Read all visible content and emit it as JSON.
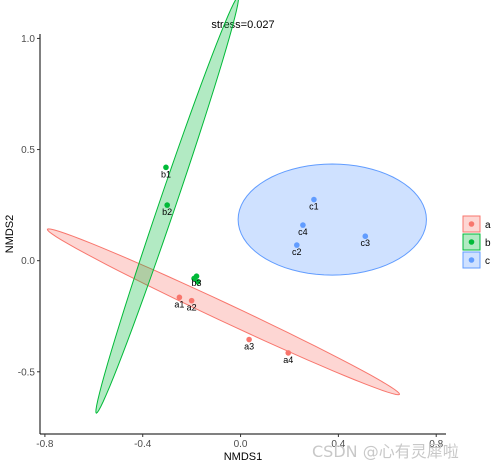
{
  "chart_data": {
    "type": "scatter",
    "title": "stress=0.027",
    "xlabel": "NMDS1",
    "ylabel": "NMDS2",
    "xlim": [
      -0.82,
      0.84
    ],
    "ylim": [
      -0.78,
      1.02
    ],
    "xticks": [
      -0.8,
      -0.4,
      0.0,
      0.4,
      0.8
    ],
    "xtick_labels": [
      "-0.8",
      "-0.4",
      "0.0",
      "0.4",
      "0.8"
    ],
    "yticks": [
      1.0,
      0.5,
      0.0,
      -0.5
    ],
    "ytick_labels": [
      "1.0",
      "0.5",
      "0.0",
      "-0.5"
    ],
    "grid": false,
    "legend_position": "right",
    "series": [
      {
        "name": "a",
        "color": "#F8766D",
        "fill": "#F8766D",
        "points": [
          {
            "label": "a1",
            "x": -0.25,
            "y": -0.165
          },
          {
            "label": "a2",
            "x": -0.2,
            "y": -0.18
          },
          {
            "label": "a3",
            "x": 0.035,
            "y": -0.355
          },
          {
            "label": "a4",
            "x": 0.195,
            "y": -0.415
          }
        ],
        "ellipse": {
          "cx": -0.07,
          "cy": -0.23,
          "rx": 0.81,
          "ry": 0.04,
          "angle_deg": -27.3
        }
      },
      {
        "name": "b",
        "color": "#00BA38",
        "fill": "#00BA38",
        "points": [
          {
            "label": "b1",
            "x": -0.305,
            "y": 0.42
          },
          {
            "label": "b2",
            "x": -0.3,
            "y": 0.25
          },
          {
            "label": "b3",
            "x": -0.18,
            "y": -0.07
          }
        ],
        "extra_points": [
          {
            "x": -0.19,
            "y": -0.08
          },
          {
            "x": -0.175,
            "y": -0.095
          }
        ],
        "ellipse": {
          "cx": -0.3,
          "cy": 0.25,
          "rx": 0.98,
          "ry": 0.034,
          "angle_deg": 72.8
        }
      },
      {
        "name": "c",
        "color": "#619CFF",
        "fill": "#619CFF",
        "points": [
          {
            "label": "c1",
            "x": 0.3,
            "y": 0.275
          },
          {
            "label": "c4",
            "x": 0.255,
            "y": 0.16
          },
          {
            "label": "c2",
            "x": 0.23,
            "y": 0.07
          },
          {
            "label": "c3",
            "x": 0.51,
            "y": 0.11
          }
        ],
        "ellipse": {
          "cx": 0.375,
          "cy": 0.185,
          "rx": 0.385,
          "ry": 0.25,
          "angle_deg": 0
        }
      }
    ]
  },
  "watermark": "CSDN @心有灵犀啦"
}
